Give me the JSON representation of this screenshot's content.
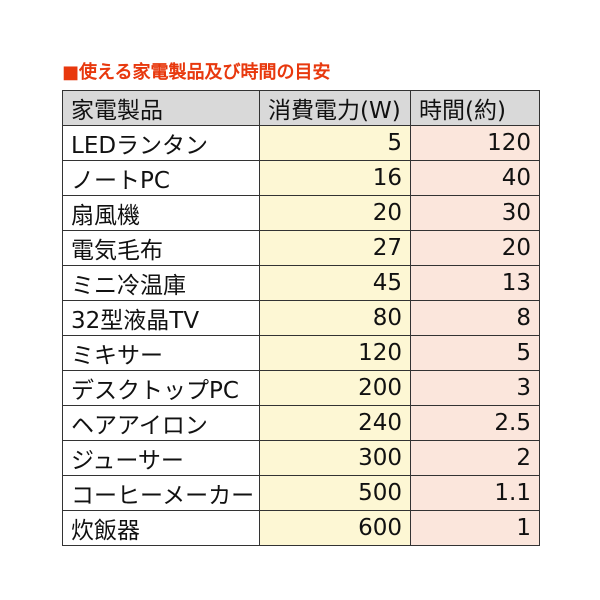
{
  "title": "■使える家電製品及び時間の目安",
  "table": {
    "headers": [
      "家電製品",
      "消費電力(W)",
      "時間(約)"
    ],
    "rows": [
      [
        "LEDランタン",
        "5",
        "120"
      ],
      [
        "ノートPC",
        "16",
        "40"
      ],
      [
        "扇風機",
        "20",
        "30"
      ],
      [
        "電気毛布",
        "27",
        "20"
      ],
      [
        "ミニ冷温庫",
        "45",
        "13"
      ],
      [
        "32型液晶TV",
        "80",
        "8"
      ],
      [
        "ミキサー",
        "120",
        "5"
      ],
      [
        "デスクトップPC",
        "200",
        "3"
      ],
      [
        "ヘアアイロン",
        "240",
        "2.5"
      ],
      [
        "ジューサー",
        "300",
        "2"
      ],
      [
        "コーヒーメーカー",
        "500",
        "1.1"
      ],
      [
        "炊飯器",
        "600",
        "1"
      ]
    ]
  },
  "colors": {
    "title": "#e8380d",
    "header_bg": "#d9d9d9",
    "watts_bg": "#fdf7d4",
    "hours_bg": "#fbe6dc",
    "border": "#333333"
  }
}
